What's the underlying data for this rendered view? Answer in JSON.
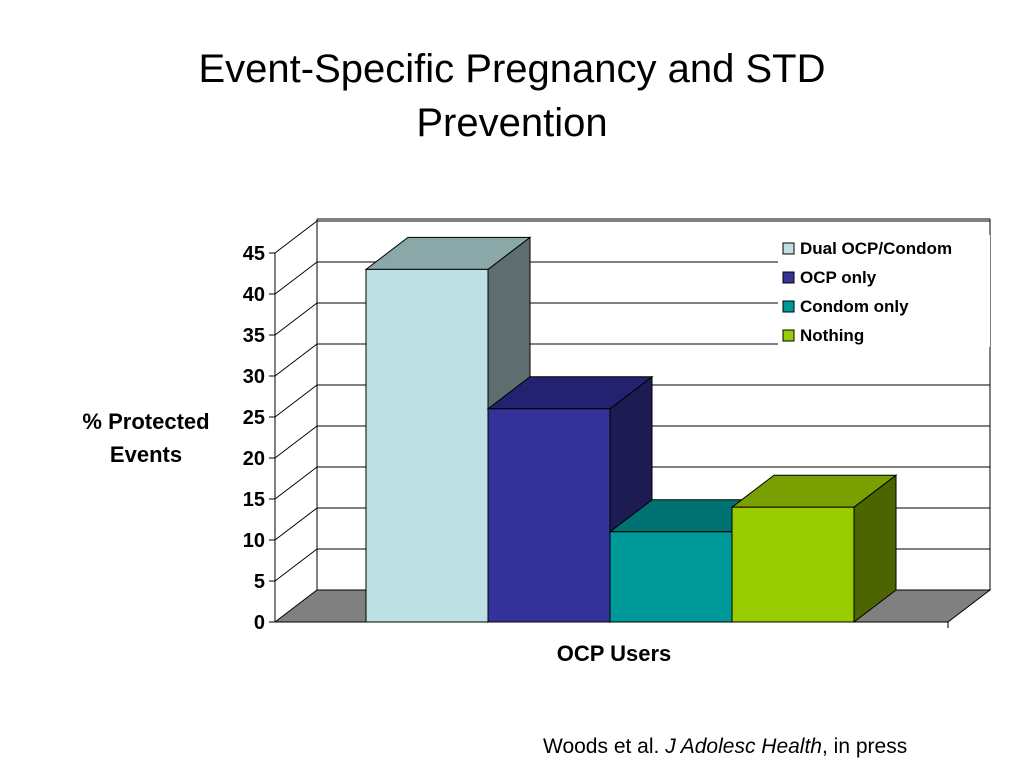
{
  "slide": {
    "title_lines": [
      "Event-Specific Pregnancy and STD",
      "Prevention"
    ],
    "citation": {
      "prefix": "Woods et al. ",
      "journal": "J Adolesc Health",
      "suffix": ", in press"
    }
  },
  "chart_data": {
    "type": "bar",
    "style": "3d-clustered-column",
    "title": "",
    "categories": [
      "OCP Users"
    ],
    "series": [
      {
        "name": "Dual OCP/Condom",
        "values": [
          43
        ],
        "color": "#bde0e4",
        "top_color": "#8ba8a9",
        "side_color": "#5e6e6e"
      },
      {
        "name": "OCP only",
        "values": [
          26
        ],
        "color": "#333399",
        "top_color": "#232270",
        "side_color": "#1c1b52"
      },
      {
        "name": "Condom only",
        "values": [
          11
        ],
        "color": "#009999",
        "top_color": "#007272",
        "side_color": "#006060"
      },
      {
        "name": "Nothing",
        "values": [
          14
        ],
        "color": "#99cc00",
        "top_color": "#7a9f00",
        "side_color": "#4d6500"
      }
    ],
    "xlabel": "OCP Users",
    "ylabel_lines": [
      "% Protected",
      "Events"
    ],
    "ylim": [
      0,
      45
    ],
    "yticks": [
      0,
      5,
      10,
      15,
      20,
      25,
      30,
      35,
      40,
      45
    ],
    "grid": true,
    "legend": "top-right",
    "floor_color": "#808080"
  }
}
